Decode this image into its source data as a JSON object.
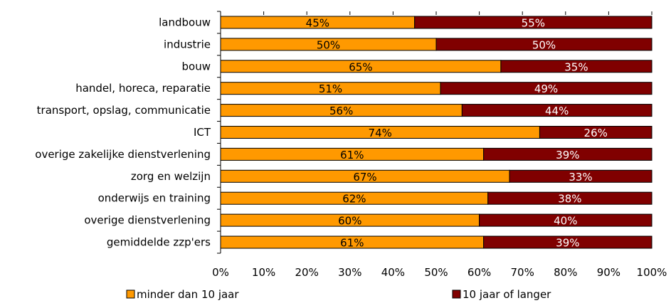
{
  "chart_data": {
    "type": "bar",
    "orientation": "horizontal",
    "stacked": true,
    "categories": [
      "landbouw",
      "industrie",
      "bouw",
      "handel, horeca, reparatie",
      "transport, opslag, communicatie",
      "ICT",
      "overige zakelijke dienstverlening",
      "zorg en welzijn",
      "onderwijs en training",
      "overige dienstverlening",
      "gemiddelde zzp'ers"
    ],
    "series": [
      {
        "name": "minder dan 10 jaar",
        "color": "#ff9900",
        "values": [
          45,
          50,
          65,
          51,
          56,
          74,
          61,
          67,
          62,
          60,
          61
        ],
        "labels": [
          "45%",
          "50%",
          "65%",
          "51%",
          "56%",
          "74%",
          "61%",
          "67%",
          "62%",
          "60%",
          "61%"
        ]
      },
      {
        "name": "10 jaar of langer",
        "color": "#800000",
        "values": [
          55,
          50,
          35,
          49,
          44,
          26,
          39,
          33,
          38,
          40,
          39
        ],
        "labels": [
          "55%",
          "50%",
          "35%",
          "49%",
          "44%",
          "26%",
          "39%",
          "33%",
          "38%",
          "40%",
          "39%"
        ]
      }
    ],
    "xlim": [
      0,
      100
    ],
    "xticks": [
      0,
      10,
      20,
      30,
      40,
      50,
      60,
      70,
      80,
      90,
      100
    ],
    "xtick_labels": [
      "0%",
      "10%",
      "20%",
      "30%",
      "40%",
      "50%",
      "60%",
      "70%",
      "80%",
      "90%",
      "100%"
    ],
    "grid": false,
    "legend_position": "bottom"
  }
}
